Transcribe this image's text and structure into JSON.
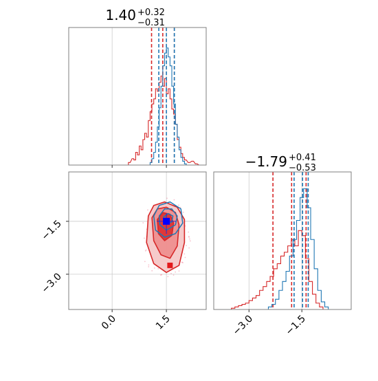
{
  "chart_data": {
    "type": "corner",
    "parameters": [
      {
        "title_main": "1.40",
        "title_plus": "+0.32",
        "title_minus": "−0.31",
        "ticks": [
          {
            "value": 0.0,
            "label": "0.0"
          },
          {
            "value": 1.5,
            "label": "1.5"
          }
        ],
        "range": [
          -1.2,
          2.6
        ]
      },
      {
        "title_main": "−1.79",
        "title_plus": "+0.41",
        "title_minus": "−0.53",
        "ticks": [
          {
            "value": -3.0,
            "label": "−3.0"
          },
          {
            "value": -1.5,
            "label": "−1.5"
          }
        ],
        "range": [
          -4.0,
          -0.1
        ]
      }
    ],
    "series": [
      {
        "color": "#d62728",
        "quantiles_p1": [
          1.09,
          1.4,
          1.72
        ],
        "quantiles_p2": [
          -2.32,
          -1.79,
          -1.38
        ],
        "hist_p1": [
          [
            0.45,
            0.02
          ],
          [
            0.55,
            0.05
          ],
          [
            0.6,
            0.04
          ],
          [
            0.65,
            0.1
          ],
          [
            0.7,
            0.08
          ],
          [
            0.75,
            0.15
          ],
          [
            0.8,
            0.12
          ],
          [
            0.85,
            0.2
          ],
          [
            0.9,
            0.25
          ],
          [
            0.95,
            0.22
          ],
          [
            1.0,
            0.35
          ],
          [
            1.05,
            0.42
          ],
          [
            1.1,
            0.48
          ],
          [
            1.15,
            0.52
          ],
          [
            1.2,
            0.6
          ],
          [
            1.25,
            0.58
          ],
          [
            1.3,
            0.65
          ],
          [
            1.35,
            0.7
          ],
          [
            1.4,
            0.62
          ],
          [
            1.45,
            0.68
          ],
          [
            1.5,
            0.56
          ],
          [
            1.55,
            0.6
          ],
          [
            1.6,
            0.52
          ],
          [
            1.65,
            0.44
          ],
          [
            1.7,
            0.4
          ],
          [
            1.75,
            0.32
          ],
          [
            1.8,
            0.2
          ],
          [
            1.85,
            0.14
          ],
          [
            1.9,
            0.09
          ],
          [
            1.95,
            0.06
          ],
          [
            2.0,
            0.04
          ],
          [
            2.1,
            0.02
          ],
          [
            2.2,
            0.03
          ],
          [
            2.3,
            0.01
          ],
          [
            2.4,
            0.0
          ]
        ],
        "hist_p2": [
          [
            -3.5,
            0.01
          ],
          [
            -3.4,
            0.02
          ],
          [
            -3.3,
            0.03
          ],
          [
            -3.2,
            0.04
          ],
          [
            -3.1,
            0.05
          ],
          [
            -3.0,
            0.07
          ],
          [
            -2.9,
            0.09
          ],
          [
            -2.8,
            0.11
          ],
          [
            -2.7,
            0.15
          ],
          [
            -2.6,
            0.18
          ],
          [
            -2.5,
            0.22
          ],
          [
            -2.4,
            0.26
          ],
          [
            -2.3,
            0.32
          ],
          [
            -2.2,
            0.36
          ],
          [
            -2.1,
            0.42
          ],
          [
            -2.0,
            0.45
          ],
          [
            -1.9,
            0.5
          ],
          [
            -1.8,
            0.55
          ],
          [
            -1.7,
            0.5
          ],
          [
            -1.6,
            0.62
          ],
          [
            -1.5,
            0.58
          ],
          [
            -1.4,
            0.4
          ],
          [
            -1.3,
            0.22
          ],
          [
            -1.2,
            0.12
          ],
          [
            -1.1,
            0.05
          ],
          [
            -1.0,
            0.02
          ],
          [
            -0.9,
            0.0
          ]
        ],
        "contours": [
          [
            [
              1.0,
              -1.35
            ],
            [
              1.15,
              -1.05
            ],
            [
              1.45,
              -0.95
            ],
            [
              1.8,
              -1.1
            ],
            [
              2.0,
              -1.45
            ],
            [
              2.0,
              -2.1
            ],
            [
              1.85,
              -2.75
            ],
            [
              1.5,
              -2.95
            ],
            [
              1.15,
              -2.7
            ],
            [
              0.95,
              -2.1
            ]
          ],
          [
            [
              1.1,
              -1.4
            ],
            [
              1.25,
              -1.15
            ],
            [
              1.5,
              -1.1
            ],
            [
              1.75,
              -1.25
            ],
            [
              1.85,
              -1.6
            ],
            [
              1.8,
              -2.2
            ],
            [
              1.6,
              -2.55
            ],
            [
              1.35,
              -2.45
            ],
            [
              1.15,
              -2.05
            ]
          ],
          [
            [
              1.25,
              -1.45
            ],
            [
              1.4,
              -1.25
            ],
            [
              1.6,
              -1.3
            ],
            [
              1.7,
              -1.55
            ],
            [
              1.65,
              -1.9
            ],
            [
              1.45,
              -2.05
            ],
            [
              1.28,
              -1.85
            ]
          ]
        ],
        "truth": [
          1.6,
          -2.75
        ]
      },
      {
        "color": "#1f77b4",
        "quantiles_p1": [
          1.29,
          1.5,
          1.72
        ],
        "quantiles_p2": [
          -1.72,
          -1.48,
          -1.32
        ],
        "hist_p1": [
          [
            1.05,
            0.02
          ],
          [
            1.1,
            0.05
          ],
          [
            1.15,
            0.1
          ],
          [
            1.2,
            0.18
          ],
          [
            1.25,
            0.3
          ],
          [
            1.3,
            0.45
          ],
          [
            1.35,
            0.62
          ],
          [
            1.4,
            0.78
          ],
          [
            1.45,
            0.88
          ],
          [
            1.5,
            0.92
          ],
          [
            1.55,
            0.85
          ],
          [
            1.6,
            0.78
          ],
          [
            1.65,
            0.62
          ],
          [
            1.7,
            0.48
          ],
          [
            1.75,
            0.32
          ],
          [
            1.8,
            0.22
          ],
          [
            1.85,
            0.12
          ],
          [
            1.9,
            0.06
          ],
          [
            1.95,
            0.03
          ],
          [
            2.0,
            0.01
          ],
          [
            2.05,
            0.0
          ]
        ],
        "hist_p2": [
          [
            -2.45,
            0.02
          ],
          [
            -2.35,
            0.04
          ],
          [
            -2.25,
            0.08
          ],
          [
            -2.15,
            0.15
          ],
          [
            -2.05,
            0.22
          ],
          [
            -1.95,
            0.3
          ],
          [
            -1.85,
            0.42
          ],
          [
            -1.75,
            0.55
          ],
          [
            -1.65,
            0.7
          ],
          [
            -1.55,
            0.88
          ],
          [
            -1.45,
            0.95
          ],
          [
            -1.35,
            0.8
          ],
          [
            -1.25,
            0.55
          ],
          [
            -1.15,
            0.32
          ],
          [
            -1.05,
            0.15
          ],
          [
            -0.95,
            0.06
          ],
          [
            -0.85,
            0.02
          ],
          [
            -0.75,
            0.0
          ]
        ],
        "contours": [
          [
            [
              1.15,
              -1.35
            ],
            [
              1.3,
              -1.05
            ],
            [
              1.6,
              -0.95
            ],
            [
              1.9,
              -1.15
            ],
            [
              1.95,
              -1.55
            ],
            [
              1.75,
              -1.85
            ],
            [
              1.45,
              -1.95
            ],
            [
              1.2,
              -1.75
            ]
          ],
          [
            [
              1.3,
              -1.35
            ],
            [
              1.45,
              -1.15
            ],
            [
              1.65,
              -1.15
            ],
            [
              1.8,
              -1.35
            ],
            [
              1.75,
              -1.6
            ],
            [
              1.5,
              -1.75
            ],
            [
              1.32,
              -1.6
            ]
          ],
          [
            [
              1.42,
              -1.38
            ],
            [
              1.55,
              -1.28
            ],
            [
              1.68,
              -1.35
            ],
            [
              1.65,
              -1.52
            ],
            [
              1.5,
              -1.58
            ],
            [
              1.42,
              -1.5
            ]
          ]
        ],
        "truth": [
          1.5,
          -1.5
        ]
      }
    ],
    "grid": true
  }
}
